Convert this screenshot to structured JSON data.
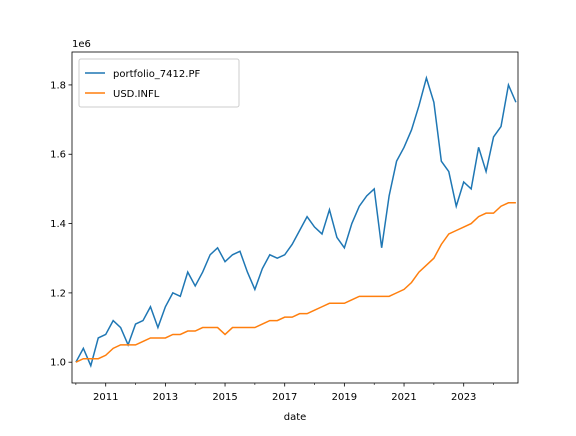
{
  "chart_data": {
    "type": "line",
    "x_label": "date",
    "y_offset_label": "1e6",
    "x": [
      2010.0,
      2010.25,
      2010.5,
      2010.75,
      2011.0,
      2011.25,
      2011.5,
      2011.75,
      2012.0,
      2012.25,
      2012.5,
      2012.75,
      2013.0,
      2013.25,
      2013.5,
      2013.75,
      2014.0,
      2014.25,
      2014.5,
      2014.75,
      2015.0,
      2015.25,
      2015.5,
      2015.75,
      2016.0,
      2016.25,
      2016.5,
      2016.75,
      2017.0,
      2017.25,
      2017.5,
      2017.75,
      2018.0,
      2018.25,
      2018.5,
      2018.75,
      2019.0,
      2019.25,
      2019.5,
      2019.75,
      2020.0,
      2020.25,
      2020.5,
      2020.75,
      2021.0,
      2021.25,
      2021.5,
      2021.75,
      2022.0,
      2022.25,
      2022.5,
      2022.75,
      2023.0,
      2023.25,
      2023.5,
      2023.75,
      2024.0,
      2024.25,
      2024.5,
      2024.75
    ],
    "series": [
      {
        "name": "portfolio_7412.PF",
        "color": "#1f77b4",
        "values": [
          1.0,
          1.04,
          0.99,
          1.07,
          1.08,
          1.12,
          1.1,
          1.05,
          1.11,
          1.12,
          1.16,
          1.1,
          1.16,
          1.2,
          1.19,
          1.26,
          1.22,
          1.26,
          1.31,
          1.33,
          1.29,
          1.31,
          1.32,
          1.26,
          1.21,
          1.27,
          1.31,
          1.3,
          1.31,
          1.34,
          1.38,
          1.42,
          1.39,
          1.37,
          1.44,
          1.36,
          1.33,
          1.4,
          1.45,
          1.48,
          1.5,
          1.33,
          1.48,
          1.58,
          1.62,
          1.67,
          1.74,
          1.82,
          1.75,
          1.58,
          1.55,
          1.45,
          1.52,
          1.5,
          1.62,
          1.55,
          1.65,
          1.68,
          1.8,
          1.75
        ]
      },
      {
        "name": "USD.INFL",
        "color": "#ff7f0e",
        "values": [
          1.0,
          1.01,
          1.01,
          1.01,
          1.02,
          1.04,
          1.05,
          1.05,
          1.05,
          1.06,
          1.07,
          1.07,
          1.07,
          1.08,
          1.08,
          1.09,
          1.09,
          1.1,
          1.1,
          1.1,
          1.08,
          1.1,
          1.1,
          1.1,
          1.1,
          1.11,
          1.12,
          1.12,
          1.13,
          1.13,
          1.14,
          1.14,
          1.15,
          1.16,
          1.17,
          1.17,
          1.17,
          1.18,
          1.19,
          1.19,
          1.19,
          1.19,
          1.19,
          1.2,
          1.21,
          1.23,
          1.26,
          1.28,
          1.3,
          1.34,
          1.37,
          1.38,
          1.39,
          1.4,
          1.42,
          1.43,
          1.43,
          1.45,
          1.46,
          1.46
        ]
      }
    ],
    "xlim": [
      2009.87,
      2024.82
    ],
    "xticks": [
      2011,
      2013,
      2015,
      2017,
      2019,
      2021,
      2023
    ],
    "xminorticks": [
      2010,
      2012,
      2014,
      2016,
      2018,
      2020,
      2022,
      2024
    ],
    "ylim": [
      0.94,
      1.895
    ],
    "yticks": [
      {
        "value": 1.0,
        "label": "1.0"
      },
      1.2,
      1.4,
      1.6,
      1.8
    ],
    "legend": "upper left",
    "grid": false
  }
}
